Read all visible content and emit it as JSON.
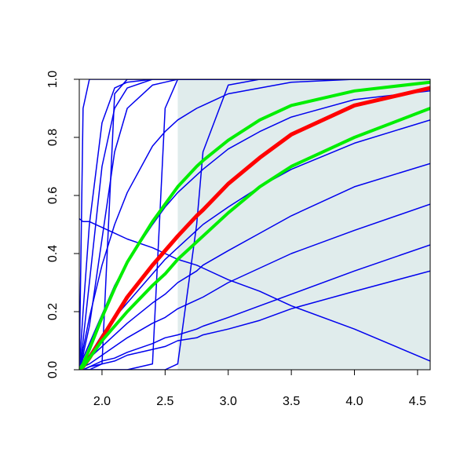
{
  "chart_data": {
    "type": "line",
    "x": [
      1.82,
      1.85,
      1.9,
      2.0,
      2.1,
      2.2,
      2.4,
      2.5,
      2.6,
      2.75,
      2.8,
      3.0,
      3.25,
      3.5,
      4.0,
      4.6
    ],
    "xlim": [
      1.82,
      4.6
    ],
    "ylim": [
      0,
      1
    ],
    "xticks": [
      {
        "value": 2,
        "label": "2.0"
      },
      2.5,
      {
        "value": 3,
        "label": "3.0"
      },
      3.5,
      {
        "value": 4,
        "label": "4.0"
      },
      4.5
    ],
    "yticks": [
      {
        "value": 0,
        "label": "0.0"
      },
      0.2,
      0.4,
      0.6,
      0.8,
      {
        "value": 1,
        "label": "1.0"
      }
    ],
    "shaded_region": [
      2.6,
      4.6
    ],
    "shade_color": "#e0ecec",
    "series": [
      {
        "color": "#0000ee",
        "width": 1.5,
        "values": [
          0,
          0.9,
          1,
          1,
          1,
          1,
          1,
          1,
          1,
          1,
          1,
          1,
          1,
          1,
          1,
          1
        ]
      },
      {
        "color": "#0000ee",
        "width": 1.5,
        "values": [
          0,
          0.2,
          0.5,
          0.85,
          0.97,
          0.99,
          1,
          1,
          1,
          1,
          1,
          1,
          1,
          1,
          1,
          1
        ]
      },
      {
        "color": "#0000ee",
        "width": 1.5,
        "values": [
          0,
          0.1,
          0.3,
          0.7,
          0.9,
          0.97,
          1,
          1,
          1,
          1,
          1,
          1,
          1,
          1,
          1,
          1
        ]
      },
      {
        "color": "#0000ee",
        "width": 1.5,
        "values": [
          0,
          0.05,
          0.15,
          0.45,
          0.75,
          0.9,
          0.98,
          0.99,
          1,
          1,
          1,
          1,
          1,
          1,
          1,
          1
        ]
      },
      {
        "color": "#0000ee",
        "width": 1.5,
        "values": [
          0,
          0,
          0,
          0.02,
          0.95,
          1,
          1,
          1,
          1,
          1,
          1,
          1,
          1,
          1,
          1,
          1
        ]
      },
      {
        "color": "#0000ee",
        "width": 1.5,
        "values": [
          0,
          0,
          0,
          0,
          0,
          0,
          0.02,
          0.9,
          1,
          1,
          1,
          1,
          1,
          1,
          1,
          1
        ]
      },
      {
        "color": "#0000ee",
        "width": 1.5,
        "values": [
          0,
          0,
          0,
          0,
          0,
          0,
          0,
          0,
          0.02,
          0.5,
          0.75,
          0.98,
          1,
          1,
          1,
          1
        ]
      },
      {
        "color": "#0000ee",
        "width": 1.5,
        "values": [
          0,
          0.07,
          0.18,
          0.36,
          0.5,
          0.61,
          0.77,
          0.82,
          0.86,
          0.9,
          0.91,
          0.95,
          0.97,
          0.99,
          1,
          1
        ]
      },
      {
        "color": "#0000ee",
        "width": 1.5,
        "values": [
          0,
          0.04,
          0.09,
          0.19,
          0.29,
          0.37,
          0.5,
          0.56,
          0.61,
          0.67,
          0.69,
          0.76,
          0.82,
          0.87,
          0.93,
          0.96
        ]
      },
      {
        "color": "#0000ee",
        "width": 1.5,
        "values": [
          0,
          0.02,
          0.05,
          0.12,
          0.18,
          0.23,
          0.33,
          0.38,
          0.42,
          0.48,
          0.5,
          0.56,
          0.63,
          0.69,
          0.78,
          0.86
        ]
      },
      {
        "color": "#0000ee",
        "width": 1.5,
        "values": [
          0,
          0.01,
          0.04,
          0.08,
          0.12,
          0.16,
          0.23,
          0.26,
          0.3,
          0.34,
          0.36,
          0.41,
          0.47,
          0.53,
          0.63,
          0.71
        ]
      },
      {
        "color": "#0000ee",
        "width": 1.5,
        "values": [
          0,
          0.01,
          0.02,
          0.05,
          0.08,
          0.11,
          0.16,
          0.18,
          0.21,
          0.24,
          0.25,
          0.3,
          0.35,
          0.4,
          0.48,
          0.57
        ]
      },
      {
        "color": "#0000ee",
        "width": 1.5,
        "values": [
          0,
          0,
          0.01,
          0.03,
          0.04,
          0.06,
          0.09,
          0.11,
          0.12,
          0.14,
          0.15,
          0.18,
          0.22,
          0.26,
          0.34,
          0.43
        ]
      },
      {
        "color": "#0000ee",
        "width": 1.5,
        "values": [
          0,
          0,
          0.01,
          0.02,
          0.03,
          0.05,
          0.07,
          0.08,
          0.1,
          0.11,
          0.12,
          0.14,
          0.17,
          0.21,
          0.27,
          0.34
        ]
      },
      {
        "color": "#0000ee",
        "width": 1.5,
        "values": [
          0.52,
          0.51,
          0.51,
          0.49,
          0.47,
          0.45,
          0.42,
          0.4,
          0.38,
          0.36,
          0.35,
          0.31,
          0.27,
          0.22,
          0.14,
          0.03
        ]
      },
      {
        "color": "#ff0000",
        "width": 5,
        "values": [
          0,
          0.01,
          0.04,
          0.11,
          0.18,
          0.25,
          0.36,
          0.41,
          0.46,
          0.53,
          0.55,
          0.64,
          0.73,
          0.81,
          0.91,
          0.97
        ]
      },
      {
        "color": "#00ee00",
        "width": 4,
        "values": [
          0,
          0.02,
          0.07,
          0.18,
          0.28,
          0.37,
          0.51,
          0.57,
          0.63,
          0.7,
          0.72,
          0.79,
          0.86,
          0.91,
          0.96,
          0.99
        ]
      },
      {
        "color": "#00ee00",
        "width": 4,
        "values": [
          0,
          0.01,
          0.04,
          0.1,
          0.15,
          0.2,
          0.29,
          0.33,
          0.38,
          0.44,
          0.46,
          0.54,
          0.63,
          0.7,
          0.8,
          0.9
        ]
      }
    ]
  }
}
